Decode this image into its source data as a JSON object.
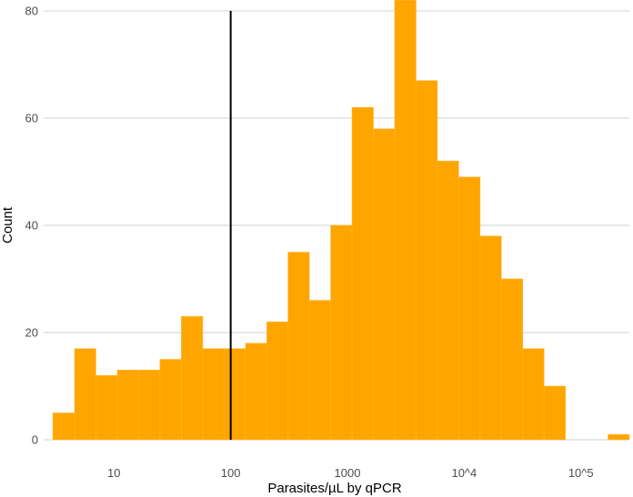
{
  "chart_data": {
    "type": "bar",
    "title": "",
    "xlabel": "Parasites/µL by qPCR",
    "ylabel": "Count",
    "x_scale": "log10",
    "x_range": [
      2.5,
      260000
    ],
    "ylim": [
      0,
      80
    ],
    "y_ticks": [
      0,
      20,
      40,
      60,
      80
    ],
    "x_ticks": [
      {
        "value": 10,
        "label": "10"
      },
      {
        "value": 100,
        "label": "100"
      },
      {
        "value": 1000,
        "label": "1000"
      },
      {
        "value": 10000,
        "label": "10^4"
      },
      {
        "value": 100000,
        "label": "10^5"
      }
    ],
    "bin_edges": [
      3.0,
      4.6,
      7.0,
      10.7,
      16.3,
      24.8,
      37.8,
      57.6,
      87.7,
      134,
      204,
      310,
      472,
      719,
      1095,
      1668,
      2541,
      3870,
      5895,
      8978,
      13675,
      20829,
      31725,
      48320,
      73598,
      112100,
      170743,
      260063
    ],
    "counts": [
      5,
      17,
      12,
      13,
      13,
      15,
      23,
      17,
      17,
      18,
      22,
      35,
      26,
      40,
      62,
      58,
      82,
      67,
      52,
      49,
      38,
      30,
      17,
      10,
      0,
      0,
      1
    ],
    "reference_line": {
      "x": 100,
      "y_top": 80,
      "color": "#000000"
    },
    "bar_color": "#FFA500",
    "grid": "horizontal"
  }
}
